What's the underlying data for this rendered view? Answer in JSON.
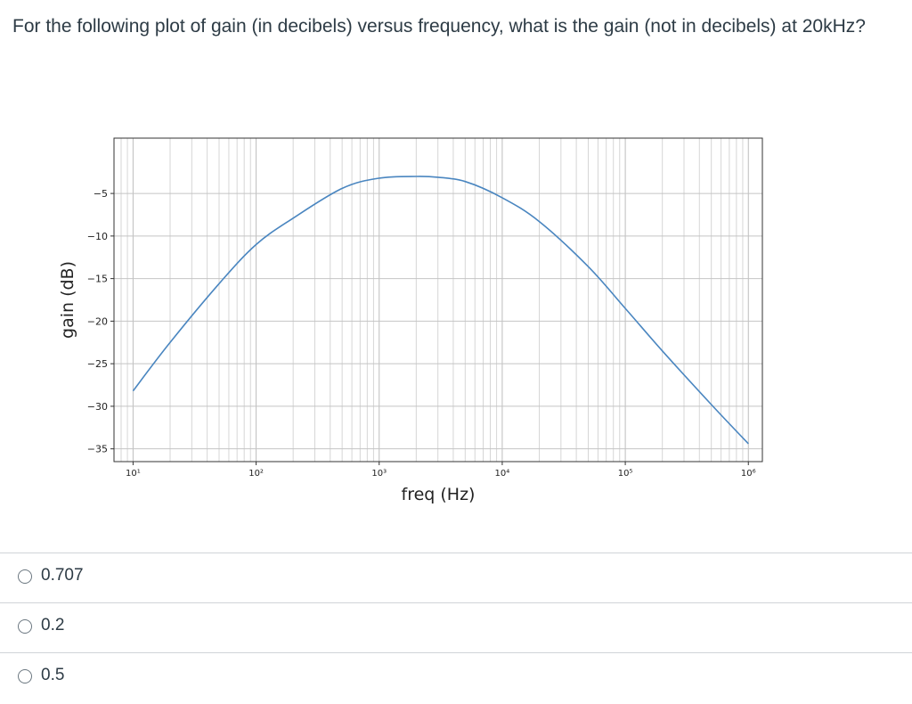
{
  "question": {
    "text": "For the following plot of gain (in decibels) versus frequency, what is the gain (not in decibels) at 20kHz?"
  },
  "chart_data": {
    "type": "line",
    "xlabel": "freq (Hz)",
    "ylabel": "gain (dB)",
    "xscale": "log",
    "xlim": [
      7,
      1300000
    ],
    "ylim": [
      -36.5,
      1.5
    ],
    "xticks": [
      10,
      100,
      1000,
      10000,
      100000,
      1000000
    ],
    "xtick_labels": [
      "10¹",
      "10²",
      "10³",
      "10⁴",
      "10⁵",
      "10⁶"
    ],
    "yticks": [
      -5,
      -10,
      -15,
      -20,
      -25,
      -30,
      -35
    ],
    "ytick_labels": [
      "−5",
      "−10",
      "−15",
      "−20",
      "−25",
      "−30",
      "−35"
    ],
    "grid": "major and minor",
    "line_color": "#4a86c0",
    "series": [
      {
        "x": [
          10,
          20,
          50,
          100,
          200,
          500,
          1000,
          2000,
          3000,
          5000,
          10000,
          20000,
          50000,
          100000,
          200000,
          500000,
          1000000
        ],
        "y": [
          -28.2,
          -22.5,
          -15.6,
          -11,
          -7.9,
          -4.4,
          -3.2,
          -3,
          -3.1,
          -3.6,
          -5.5,
          -8.3,
          -13.6,
          -18.5,
          -23.5,
          -29.8,
          -34.4
        ]
      }
    ]
  },
  "answers": {
    "options": [
      {
        "label": "0.707"
      },
      {
        "label": "0.2"
      },
      {
        "label": "0.5"
      }
    ]
  }
}
